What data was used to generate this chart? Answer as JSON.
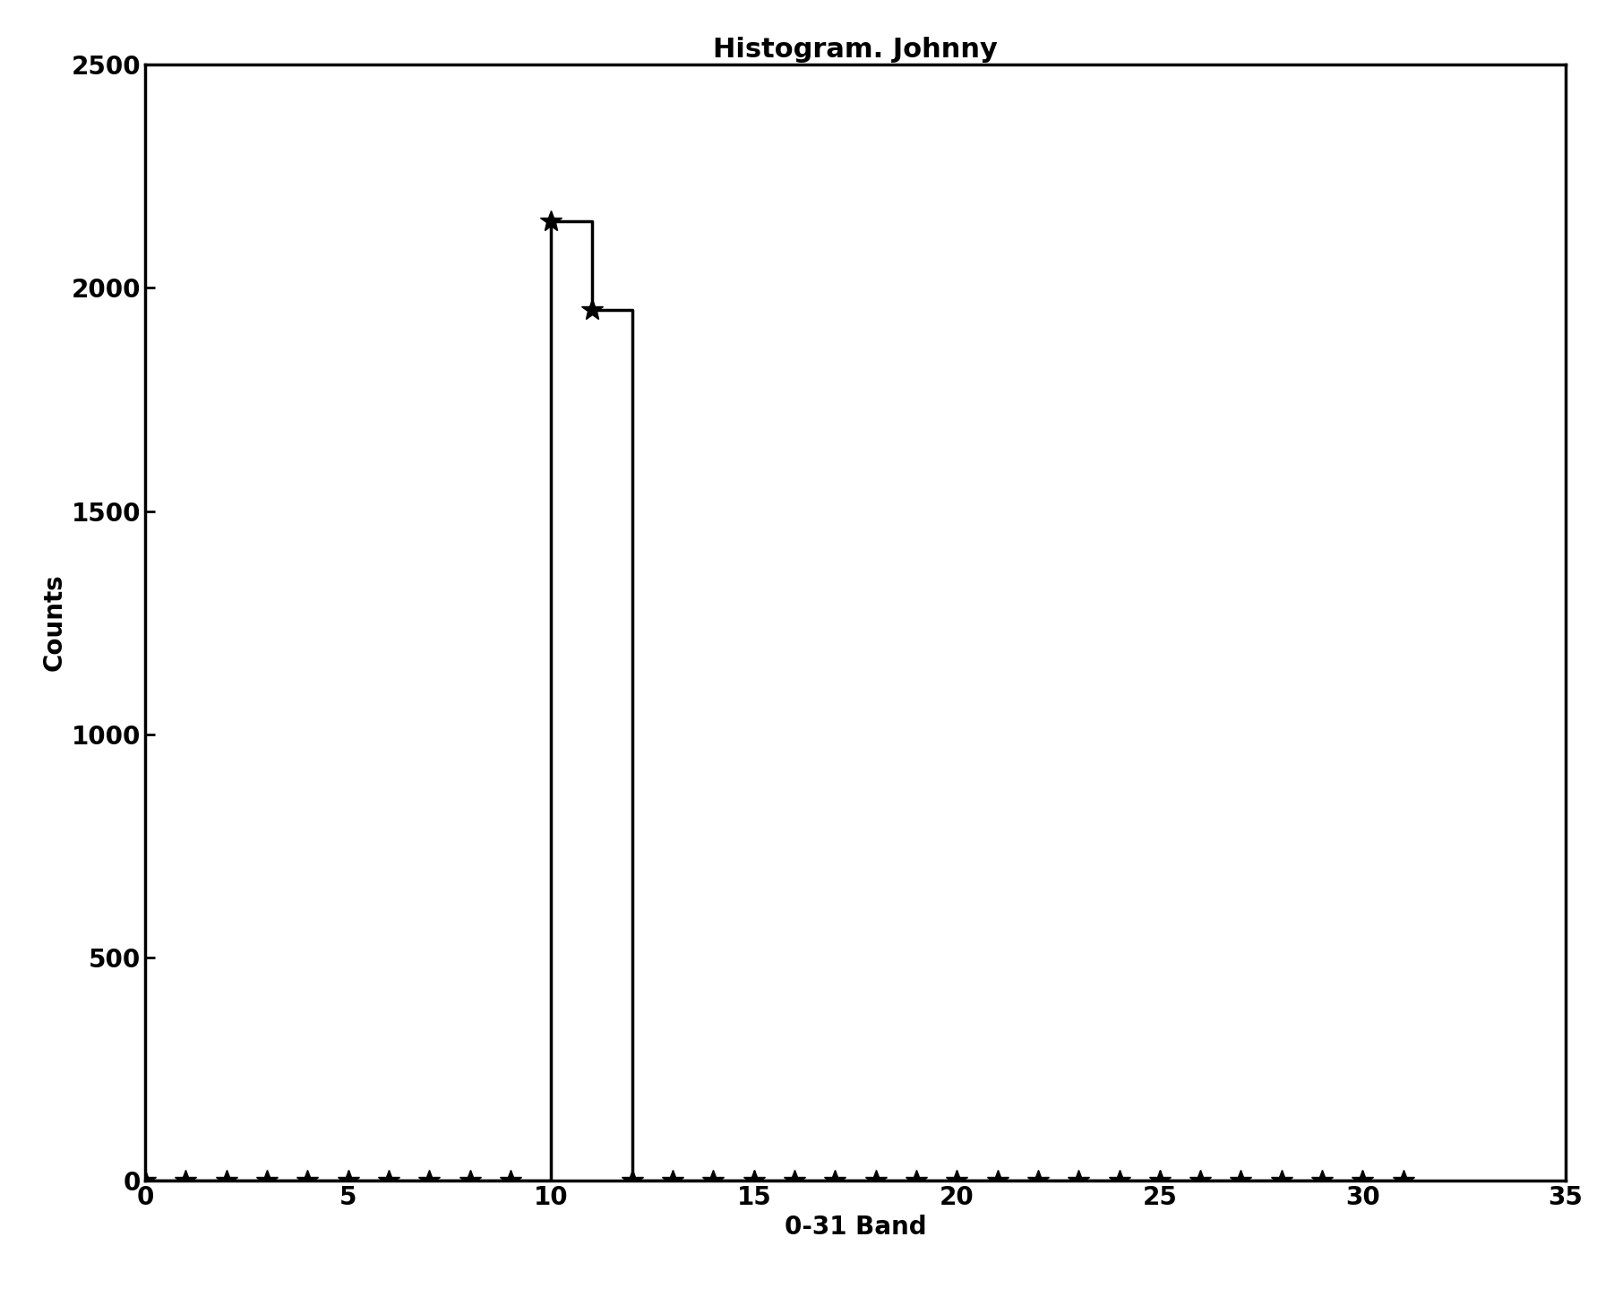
{
  "title": "Histogram. Johnny",
  "xlabel": "0-31 Band",
  "ylabel": "Counts",
  "xlim": [
    0,
    35
  ],
  "ylim": [
    0,
    2500
  ],
  "xticks": [
    0,
    5,
    10,
    15,
    20,
    25,
    30,
    35
  ],
  "yticks": [
    0,
    500,
    1000,
    1500,
    2000,
    2500
  ],
  "x_data": [
    0,
    1,
    2,
    3,
    4,
    5,
    6,
    7,
    8,
    9,
    10,
    11,
    12,
    13,
    14,
    15,
    16,
    17,
    18,
    19,
    20,
    21,
    22,
    23,
    24,
    25,
    26,
    27,
    28,
    29,
    30,
    31
  ],
  "y_data": [
    0,
    0,
    0,
    0,
    0,
    0,
    0,
    0,
    0,
    0,
    2150,
    1950,
    0,
    0,
    0,
    0,
    0,
    0,
    0,
    0,
    0,
    0,
    0,
    0,
    0,
    0,
    0,
    0,
    0,
    0,
    0,
    0
  ],
  "line_color": "#000000",
  "marker": "*",
  "marker_size": 18,
  "line_width": 2.5,
  "title_fontsize": 22,
  "label_fontsize": 20,
  "tick_fontsize": 20,
  "background_color": "#ffffff",
  "drawstyle": "steps-post"
}
